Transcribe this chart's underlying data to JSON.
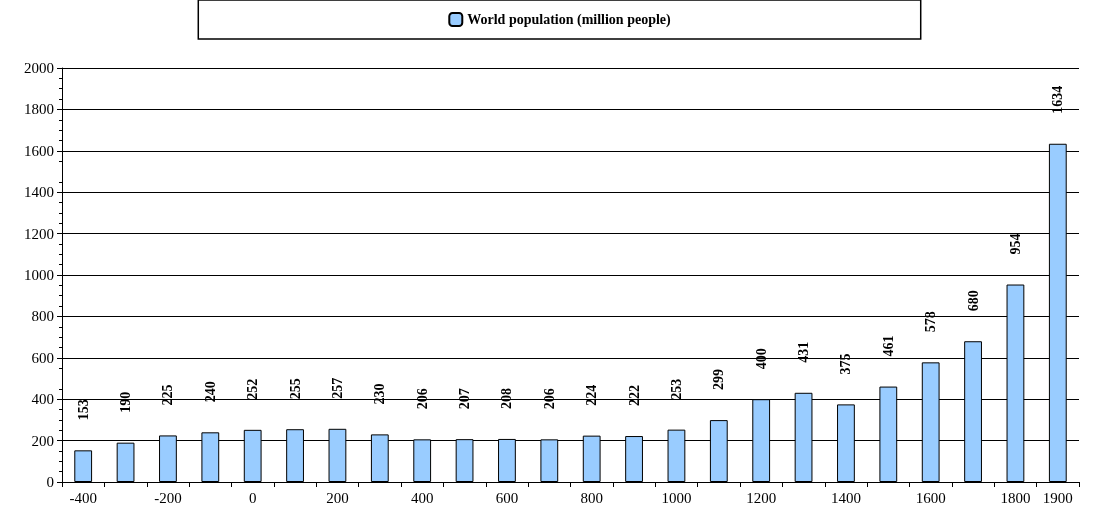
{
  "chart_data": {
    "type": "bar",
    "categories": [
      "-400",
      null,
      "-200",
      null,
      "0",
      null,
      "200",
      null,
      "400",
      null,
      "600",
      null,
      "800",
      null,
      "1000",
      null,
      "1200",
      null,
      "1400",
      null,
      "1600",
      null,
      "1800",
      "1900"
    ],
    "series": [
      {
        "name": "World population (million people)",
        "color": "#99ccff",
        "values": [
          153,
          190,
          225,
          240,
          252,
          255,
          257,
          230,
          206,
          207,
          208,
          206,
          224,
          222,
          253,
          299,
          400,
          431,
          375,
          461,
          578,
          680,
          954,
          1634
        ]
      }
    ],
    "ylim": [
      0,
      2000
    ],
    "yticks": [
      0,
      200,
      400,
      600,
      800,
      1000,
      1200,
      1400,
      1600,
      1800,
      2000
    ],
    "grid": "y",
    "legend": "top",
    "data_labels": true
  }
}
